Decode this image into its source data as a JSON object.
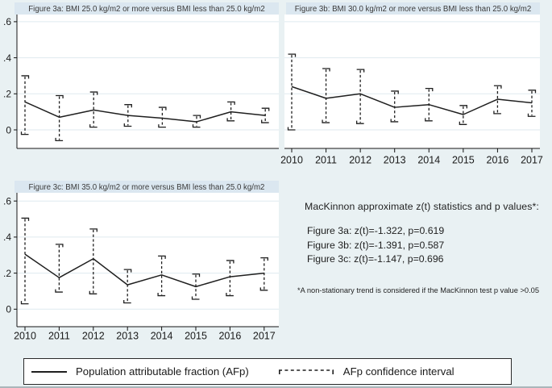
{
  "figure": {
    "text_block": {
      "heading": "MacKinnon approximate z(t) statistics and p values*:",
      "lines": [
        "Figure 3a: z(t)=-1.322, p=0.619",
        "Figure 3b: z(t)=-1.391, p=0.587",
        "Figure 3c: z(t)=-1.147, p=0.696"
      ],
      "footnote": "*A non-stationary trend is considered if the MacKinnon test p value >0.05"
    },
    "legend": {
      "afp_label": "Population attributable fraction (AFp)",
      "ci_label": "AFp confidence interval"
    }
  },
  "colors": {
    "background": "#e9f1f3",
    "panel_title_bg": "#dbe7f0",
    "plot_bg": "#ffffff",
    "grid": "#dfeaef",
    "axis": "#141414",
    "line": "#1f1f1f",
    "title_text": "#3a3a3a",
    "tick_text": "#1a1a1a"
  },
  "chart_data": [
    {
      "id": "figure-3a",
      "type": "line",
      "title": "Figure 3a: BMI 25.0 kg/m2 or more versus BMI less than 25.0 kg/m2",
      "x": [
        2010,
        2011,
        2012,
        2013,
        2014,
        2015,
        2016,
        2017
      ],
      "series": [
        {
          "name": "Population attributable fraction (AFp)",
          "values": [
            0.155,
            0.07,
            0.11,
            0.08,
            0.065,
            0.045,
            0.1,
            0.08
          ]
        }
      ],
      "ci_low": [
        -0.025,
        -0.06,
        0.015,
        0.02,
        0.015,
        0.015,
        0.05,
        0.04
      ],
      "ci_high": [
        0.3,
        0.19,
        0.21,
        0.14,
        0.125,
        0.08,
        0.155,
        0.12
      ],
      "xlabel": "",
      "ylabel": "",
      "ylim": [
        -0.105,
        0.65
      ],
      "yticks": [
        0,
        0.2,
        0.4,
        0.6
      ],
      "ytick_labels": [
        "0",
        ".2",
        ".4",
        ".6"
      ],
      "show_x_labels": false,
      "show_y_labels": true,
      "grid": true,
      "legend_position": "none"
    },
    {
      "id": "figure-3b",
      "type": "line",
      "title": "Figure 3b: BMI 30.0 kg/m2 or more versus BMI less than 25.0 kg/m2",
      "x": [
        2010,
        2011,
        2012,
        2013,
        2014,
        2015,
        2016,
        2017
      ],
      "series": [
        {
          "name": "Population attributable fraction (AFp)",
          "values": [
            0.24,
            0.175,
            0.2,
            0.125,
            0.14,
            0.085,
            0.17,
            0.15
          ]
        }
      ],
      "ci_low": [
        0.0,
        0.04,
        0.035,
        0.045,
        0.05,
        0.03,
        0.09,
        0.075
      ],
      "ci_high": [
        0.42,
        0.34,
        0.335,
        0.215,
        0.23,
        0.135,
        0.245,
        0.22
      ],
      "xlabel": "",
      "ylabel": "",
      "ylim": [
        -0.105,
        0.65
      ],
      "yticks": [
        0,
        0.2,
        0.4,
        0.6
      ],
      "ytick_labels": [
        "0",
        ".2",
        ".4",
        ".6"
      ],
      "show_x_labels": true,
      "show_y_labels": false,
      "grid": true,
      "legend_position": "none"
    },
    {
      "id": "figure-3c",
      "type": "line",
      "title": "Figure 3c: BMI 35.0 kg/m2 or more versus BMI less than 25.0 kg/m2",
      "x": [
        2010,
        2011,
        2012,
        2013,
        2014,
        2015,
        2016,
        2017
      ],
      "series": [
        {
          "name": "Population attributable fraction (AFp)",
          "values": [
            0.305,
            0.175,
            0.28,
            0.135,
            0.19,
            0.125,
            0.18,
            0.2
          ]
        }
      ],
      "ci_low": [
        0.03,
        0.095,
        0.085,
        0.035,
        0.075,
        0.055,
        0.075,
        0.105
      ],
      "ci_high": [
        0.505,
        0.36,
        0.445,
        0.22,
        0.295,
        0.195,
        0.27,
        0.285
      ],
      "xlabel": "",
      "ylabel": "",
      "ylim": [
        -0.1,
        0.635
      ],
      "yticks": [
        0,
        0.2,
        0.4,
        0.6
      ],
      "ytick_labels": [
        "0",
        ".2",
        ".4",
        ".6"
      ],
      "show_x_labels": true,
      "show_y_labels": true,
      "grid": true,
      "legend_position": "none"
    }
  ]
}
